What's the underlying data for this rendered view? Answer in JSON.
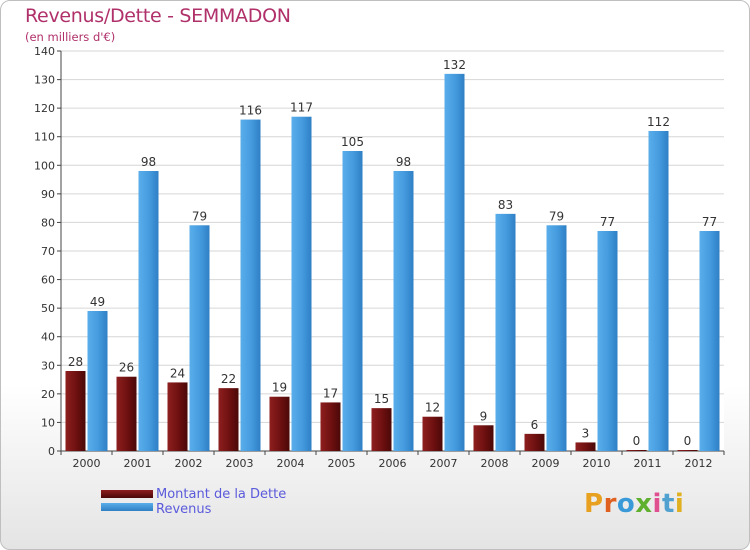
{
  "chart_data": {
    "type": "bar",
    "title": "Revenus/Dette - SEMMADON",
    "subtitle": "(en milliers d'€)",
    "categories": [
      "2000",
      "2001",
      "2002",
      "2003",
      "2004",
      "2005",
      "2006",
      "2007",
      "2008",
      "2009",
      "2010",
      "2011",
      "2012"
    ],
    "series": [
      {
        "name": "Montant de la Dette",
        "color": "#7a1515",
        "values": [
          28,
          26,
          24,
          22,
          19,
          17,
          15,
          12,
          9,
          6,
          3,
          0,
          0
        ]
      },
      {
        "name": "Revenus",
        "color": "#4a9de0",
        "values": [
          49,
          98,
          79,
          116,
          117,
          105,
          98,
          132,
          83,
          79,
          77,
          112,
          77
        ]
      }
    ],
    "ylim": [
      0,
      140
    ],
    "ytick_step": 10,
    "grid": true,
    "legend_position": "bottom-left",
    "show_data_labels": true
  },
  "logo_text": "Proxiti"
}
